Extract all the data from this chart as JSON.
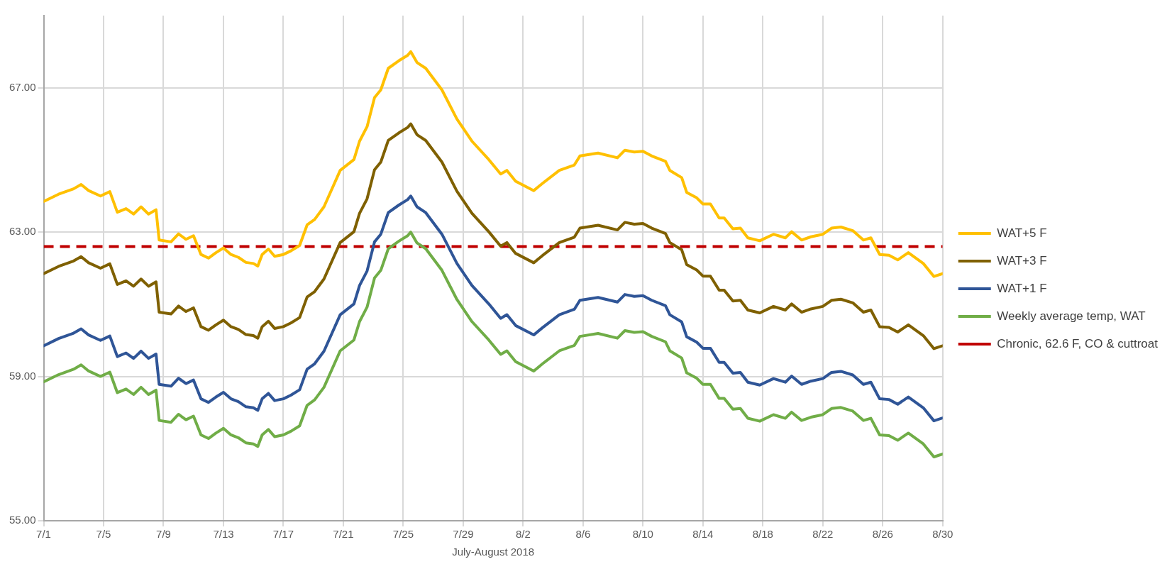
{
  "chart_data": {
    "type": "line",
    "xlabel": "July-August 2018",
    "x": [
      "2018-07-01T00:00",
      "2018-07-02T00:00",
      "2018-07-03T00:00",
      "2018-07-03T12:00",
      "2018-07-04T00:00",
      "2018-07-04T19:00",
      "2018-07-05T10:00",
      "2018-07-05T22:00",
      "2018-07-06T12:00",
      "2018-07-07T00:00",
      "2018-07-07T12:00",
      "2018-07-08T00:00",
      "2018-07-08T12:00",
      "2018-07-08T17:00",
      "2018-07-09T12:00",
      "2018-07-10T00:00",
      "2018-07-10T12:00",
      "2018-07-11T00:00",
      "2018-07-11T12:00",
      "2018-07-12T00:00",
      "2018-07-12T12:00",
      "2018-07-13T00:00",
      "2018-07-13T12:00",
      "2018-07-14T00:00",
      "2018-07-14T12:00",
      "2018-07-15T00:00",
      "2018-07-15T07:00",
      "2018-07-15T14:00",
      "2018-07-16T00:00",
      "2018-07-16T10:00",
      "2018-07-17T00:00",
      "2018-07-17T12:00",
      "2018-07-18T02:00",
      "2018-07-18T14:00",
      "2018-07-19T02:00",
      "2018-07-19T17:00",
      "2018-07-20T19:00",
      "2018-07-21T17:00",
      "2018-07-22T02:00",
      "2018-07-22T14:00",
      "2018-07-23T02:00",
      "2018-07-23T12:00",
      "2018-07-24T00:00",
      "2018-07-24T17:00",
      "2018-07-25T07:00",
      "2018-07-25T12:00",
      "2018-07-25T22:00",
      "2018-07-26T12:00",
      "2018-07-27T14:00",
      "2018-07-28T14:00",
      "2018-07-29T14:00",
      "2018-07-30T17:00",
      "2018-07-31T12:00",
      "2018-07-31T22:00",
      "2018-08-01T12:00",
      "2018-08-02T17:00",
      "2018-08-03T07:00",
      "2018-08-04T10:00",
      "2018-08-05T10:00",
      "2018-08-05T19:00",
      "2018-08-07T00:00",
      "2018-08-08T07:00",
      "2018-08-08T19:00",
      "2018-08-09T10:00",
      "2018-08-10T00:00",
      "2018-08-10T14:00",
      "2018-08-11T12:00",
      "2018-08-11T19:00",
      "2018-08-12T14:00",
      "2018-08-12T22:00",
      "2018-08-13T14:00",
      "2018-08-14T00:00",
      "2018-08-14T12:00",
      "2018-08-15T02:00",
      "2018-08-15T10:00",
      "2018-08-16T00:00",
      "2018-08-16T12:00",
      "2018-08-17T00:00",
      "2018-08-17T19:00",
      "2018-08-18T17:00",
      "2018-08-19T12:00",
      "2018-08-19T22:00",
      "2018-08-20T14:00",
      "2018-08-21T05:00",
      "2018-08-22T00:00",
      "2018-08-22T14:00",
      "2018-08-23T05:00",
      "2018-08-24T00:00",
      "2018-08-24T17:00",
      "2018-08-25T05:00",
      "2018-08-25T19:00",
      "2018-08-26T10:00",
      "2018-08-27T00:00",
      "2018-08-27T17:00",
      "2018-08-28T17:00",
      "2018-08-29T10:00",
      "2018-08-30T00:00"
    ],
    "series": [
      {
        "name": "WAT+5 F",
        "color": "#ffc000",
        "values": [
          63.85,
          64.05,
          64.2,
          64.32,
          64.15,
          64.0,
          64.12,
          63.55,
          63.65,
          63.5,
          63.7,
          63.5,
          63.62,
          62.78,
          62.73,
          62.95,
          62.8,
          62.9,
          62.38,
          62.28,
          62.43,
          62.56,
          62.38,
          62.3,
          62.16,
          62.13,
          62.06,
          62.38,
          62.53,
          62.33,
          62.38,
          62.48,
          62.63,
          63.2,
          63.35,
          63.7,
          64.71,
          65.01,
          65.52,
          65.92,
          66.73,
          66.94,
          67.54,
          67.75,
          67.9,
          68.0,
          67.7,
          67.54,
          66.94,
          66.13,
          65.52,
          65.01,
          64.61,
          64.71,
          64.41,
          64.15,
          64.35,
          64.71,
          64.86,
          65.11,
          65.19,
          65.06,
          65.27,
          65.22,
          65.24,
          65.11,
          64.96,
          64.71,
          64.51,
          64.1,
          63.95,
          63.78,
          63.78,
          63.39,
          63.39,
          63.09,
          63.11,
          62.84,
          62.76,
          62.94,
          62.84,
          63.01,
          62.78,
          62.87,
          62.94,
          63.11,
          63.14,
          63.04,
          62.78,
          62.84,
          62.38,
          62.36,
          62.23,
          62.43,
          62.13,
          61.77,
          61.85
        ]
      },
      {
        "name": "WAT+3 F",
        "color": "#7f6000",
        "values": [
          61.85,
          62.05,
          62.2,
          62.32,
          62.15,
          62.0,
          62.12,
          61.55,
          61.65,
          61.5,
          61.7,
          61.5,
          61.62,
          60.78,
          60.73,
          60.95,
          60.8,
          60.9,
          60.38,
          60.28,
          60.43,
          60.56,
          60.38,
          60.3,
          60.16,
          60.13,
          60.06,
          60.38,
          60.53,
          60.33,
          60.38,
          60.48,
          60.63,
          61.2,
          61.35,
          61.7,
          62.71,
          63.01,
          63.52,
          63.92,
          64.73,
          64.94,
          65.54,
          65.75,
          65.9,
          66.0,
          65.7,
          65.54,
          64.94,
          64.13,
          63.52,
          63.01,
          62.61,
          62.71,
          62.41,
          62.15,
          62.35,
          62.71,
          62.86,
          63.11,
          63.19,
          63.06,
          63.27,
          63.22,
          63.24,
          63.11,
          62.96,
          62.71,
          62.51,
          62.1,
          61.95,
          61.78,
          61.78,
          61.39,
          61.39,
          61.09,
          61.11,
          60.84,
          60.76,
          60.94,
          60.84,
          61.01,
          60.78,
          60.87,
          60.94,
          61.11,
          61.14,
          61.04,
          60.78,
          60.84,
          60.38,
          60.36,
          60.23,
          60.43,
          60.13,
          59.77,
          59.85
        ]
      },
      {
        "name": "WAT+1 F",
        "color": "#2f5597",
        "values": [
          59.85,
          60.05,
          60.2,
          60.32,
          60.15,
          60.0,
          60.12,
          59.55,
          59.65,
          59.5,
          59.7,
          59.5,
          59.62,
          58.78,
          58.73,
          58.95,
          58.8,
          58.9,
          58.38,
          58.28,
          58.43,
          58.56,
          58.38,
          58.3,
          58.16,
          58.13,
          58.06,
          58.38,
          58.53,
          58.33,
          58.38,
          58.48,
          58.63,
          59.2,
          59.35,
          59.7,
          60.71,
          61.01,
          61.52,
          61.92,
          62.73,
          62.94,
          63.54,
          63.75,
          63.9,
          64.0,
          63.7,
          63.54,
          62.94,
          62.13,
          61.52,
          61.01,
          60.61,
          60.71,
          60.41,
          60.15,
          60.35,
          60.71,
          60.86,
          61.11,
          61.19,
          61.06,
          61.27,
          61.22,
          61.24,
          61.11,
          60.96,
          60.71,
          60.51,
          60.1,
          59.95,
          59.78,
          59.78,
          59.39,
          59.39,
          59.09,
          59.11,
          58.84,
          58.76,
          58.94,
          58.84,
          59.01,
          58.78,
          58.87,
          58.94,
          59.11,
          59.14,
          59.04,
          58.78,
          58.84,
          58.38,
          58.36,
          58.23,
          58.43,
          58.13,
          57.77,
          57.85
        ]
      },
      {
        "name": "Weekly average temp, WAT",
        "color": "#70ad47",
        "values": [
          58.85,
          59.05,
          59.2,
          59.32,
          59.15,
          59.0,
          59.12,
          58.55,
          58.65,
          58.5,
          58.7,
          58.5,
          58.62,
          57.78,
          57.73,
          57.95,
          57.8,
          57.9,
          57.38,
          57.28,
          57.43,
          57.56,
          57.38,
          57.3,
          57.16,
          57.13,
          57.06,
          57.38,
          57.53,
          57.33,
          57.38,
          57.48,
          57.63,
          58.2,
          58.35,
          58.7,
          59.71,
          60.01,
          60.52,
          60.92,
          61.73,
          61.94,
          62.54,
          62.75,
          62.9,
          63.0,
          62.7,
          62.54,
          61.94,
          61.13,
          60.52,
          60.01,
          59.61,
          59.71,
          59.41,
          59.15,
          59.35,
          59.71,
          59.86,
          60.11,
          60.19,
          60.06,
          60.27,
          60.22,
          60.24,
          60.11,
          59.96,
          59.71,
          59.51,
          59.1,
          58.95,
          58.78,
          58.78,
          58.39,
          58.39,
          58.09,
          58.11,
          57.84,
          57.76,
          57.94,
          57.84,
          58.01,
          57.78,
          57.87,
          57.94,
          58.11,
          58.14,
          58.04,
          57.78,
          57.84,
          57.38,
          57.36,
          57.23,
          57.43,
          57.13,
          56.77,
          56.85
        ]
      }
    ],
    "ref_lines": [
      {
        "axis": "y",
        "value": 62.6,
        "label": "Chronic, 62.6 F, CO & cuttroat",
        "color": "#c00000",
        "line_style": "dashed"
      }
    ],
    "xlim": [
      "2018-07-01",
      "2018-08-30"
    ],
    "xticks": [
      {
        "value": "2018-07-01",
        "label": "7/1"
      },
      {
        "value": "2018-07-05",
        "label": "7/5"
      },
      {
        "value": "2018-07-09",
        "label": "7/9"
      },
      {
        "value": "2018-07-13",
        "label": "7/13"
      },
      {
        "value": "2018-07-17",
        "label": "7/17"
      },
      {
        "value": "2018-07-21",
        "label": "7/21"
      },
      {
        "value": "2018-07-25",
        "label": "7/25"
      },
      {
        "value": "2018-07-29",
        "label": "7/29"
      },
      {
        "value": "2018-08-02",
        "label": "8/2"
      },
      {
        "value": "2018-08-06",
        "label": "8/6"
      },
      {
        "value": "2018-08-10",
        "label": "8/10"
      },
      {
        "value": "2018-08-14",
        "label": "8/14"
      },
      {
        "value": "2018-08-18",
        "label": "8/18"
      },
      {
        "value": "2018-08-22",
        "label": "8/22"
      },
      {
        "value": "2018-08-26",
        "label": "8/26"
      },
      {
        "value": "2018-08-30",
        "label": "8/30"
      }
    ],
    "ylim": [
      55,
      69
    ],
    "yticks": [
      {
        "value": 55,
        "label": "55.00"
      },
      {
        "value": 59,
        "label": "59.00"
      },
      {
        "value": 63,
        "label": "63.00"
      },
      {
        "value": 67,
        "label": "67.00"
      }
    ],
    "grid": true,
    "legend": "right",
    "marker": "none",
    "line_style": "solid"
  }
}
